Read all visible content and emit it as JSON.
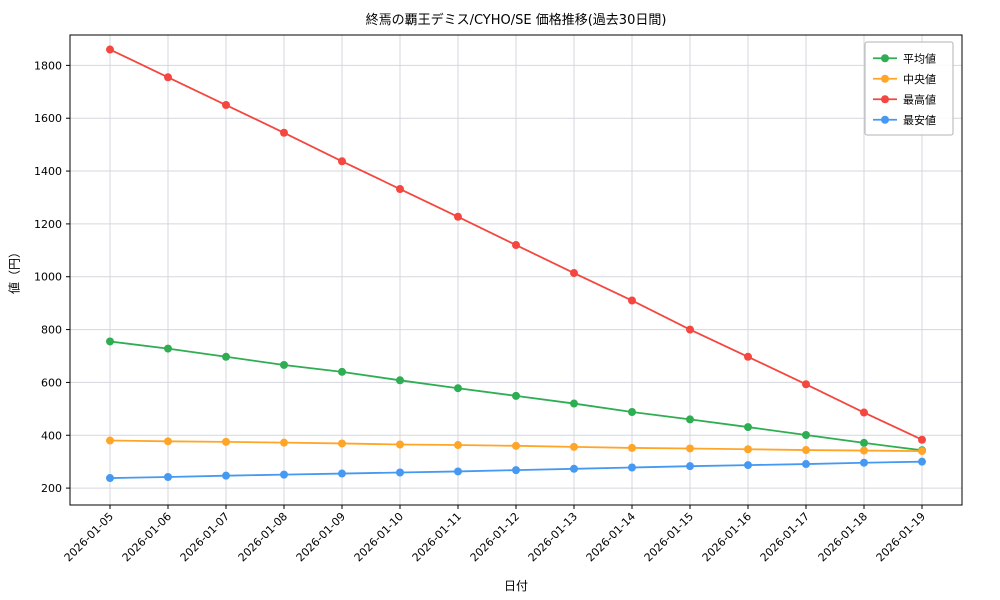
{
  "chart_data": {
    "type": "line",
    "title": "終焉の覇王デミス/CYHO/SE 価格推移(過去30日間)",
    "xlabel": "日付",
    "ylabel": "値（円）",
    "grid": true,
    "legend_position": "upper right",
    "ylim": [
      136,
      1915
    ],
    "yticks": [
      200,
      400,
      600,
      800,
      1000,
      1200,
      1400,
      1600,
      1800
    ],
    "x": [
      "2026-01-05",
      "2026-01-06",
      "2026-01-07",
      "2026-01-08",
      "2026-01-09",
      "2026-01-10",
      "2026-01-11",
      "2026-01-12",
      "2026-01-13",
      "2026-01-14",
      "2026-01-15",
      "2026-01-16",
      "2026-01-17",
      "2026-01-18",
      "2026-01-19"
    ],
    "series": [
      {
        "key": "average",
        "name": "平均値",
        "color": "#2fad53",
        "values": [
          755,
          728,
          697,
          666,
          640,
          608,
          578,
          549,
          520,
          488,
          460,
          431,
          401,
          371,
          343
        ]
      },
      {
        "key": "median",
        "name": "中央値",
        "color": "#ffa629",
        "values": [
          380,
          377,
          375,
          372,
          369,
          365,
          363,
          360,
          356,
          352,
          350,
          347,
          344,
          342,
          340
        ]
      },
      {
        "key": "max",
        "name": "最高値",
        "color": "#f3473f",
        "values": [
          1860,
          1755,
          1650,
          1545,
          1437,
          1332,
          1227,
          1120,
          1014,
          910,
          800,
          697,
          593,
          486,
          383
        ]
      },
      {
        "key": "min",
        "name": "最安値",
        "color": "#4699f2",
        "values": [
          238,
          242,
          247,
          251,
          255,
          259,
          263,
          268,
          273,
          278,
          283,
          287,
          291,
          296,
          300
        ]
      }
    ],
    "style": {
      "grid_color": "#d4d7de",
      "axis_color": "#000000",
      "legend_border": "#b3b3b3",
      "plot_bg": "#ffffff"
    }
  }
}
